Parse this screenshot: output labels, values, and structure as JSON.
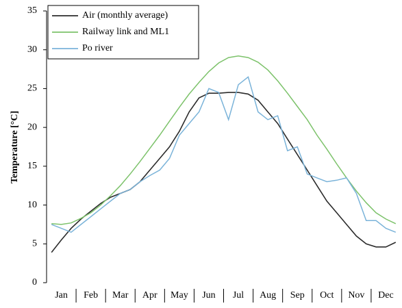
{
  "chart_data": {
    "type": "line",
    "ylabel": "Temperature [°C]",
    "categories": [
      null,
      "Jan",
      null,
      null,
      "Feb",
      null,
      null,
      "Mar",
      null,
      null,
      "Apr",
      null,
      null,
      "May",
      null,
      null,
      "Jun",
      null,
      null,
      "Jul",
      null,
      null,
      "Aug",
      null,
      null,
      "Sep",
      null,
      null,
      "Oct",
      null,
      null,
      "Nov",
      null,
      null,
      "Dec",
      null
    ],
    "series": [
      {
        "name": "Air (monthly average)",
        "color": "#2b2b2b",
        "values": [
          3.9,
          5.5,
          7,
          8.2,
          9.2,
          10.2,
          11,
          11.5,
          12,
          13,
          14.5,
          16,
          17.5,
          19.5,
          22,
          23.8,
          24.4,
          24.4,
          24.5,
          24.5,
          24.3,
          23.5,
          22,
          20.5,
          18.5,
          16.5,
          14.5,
          12.5,
          10.5,
          9,
          7.5,
          6,
          5,
          4.6,
          4.6,
          5.2
        ]
      },
      {
        "name": "Railway link and ML1",
        "color": "#7cc26a",
        "values": [
          7.6,
          7.5,
          7.7,
          8.3,
          9,
          10,
          11.2,
          12.5,
          14,
          15.6,
          17.3,
          19,
          20.8,
          22.6,
          24.3,
          25.8,
          27.2,
          28.3,
          29,
          29.2,
          29,
          28.4,
          27.4,
          26,
          24.4,
          22.7,
          21,
          19,
          17.2,
          15.3,
          13.5,
          11.8,
          10.3,
          9,
          8.2,
          7.6
        ]
      },
      {
        "name": "Po river",
        "color": "#7ab3d9",
        "values": [
          7.5,
          7,
          6.5,
          7.5,
          8.5,
          9.5,
          10.5,
          11.5,
          12,
          13,
          13.8,
          14.5,
          16,
          19,
          20.5,
          22,
          25,
          24.5,
          21,
          25.5,
          26.5,
          22,
          21,
          21.5,
          17,
          17.5,
          14,
          13.5,
          13,
          13.2,
          13.5,
          11.5,
          8,
          8,
          7,
          6.5
        ]
      }
    ],
    "ylim": [
      0,
      35
    ],
    "yticks": [
      0,
      5,
      10,
      15,
      20,
      25,
      30,
      35
    ],
    "legend": "upper-left",
    "grid": false
  }
}
